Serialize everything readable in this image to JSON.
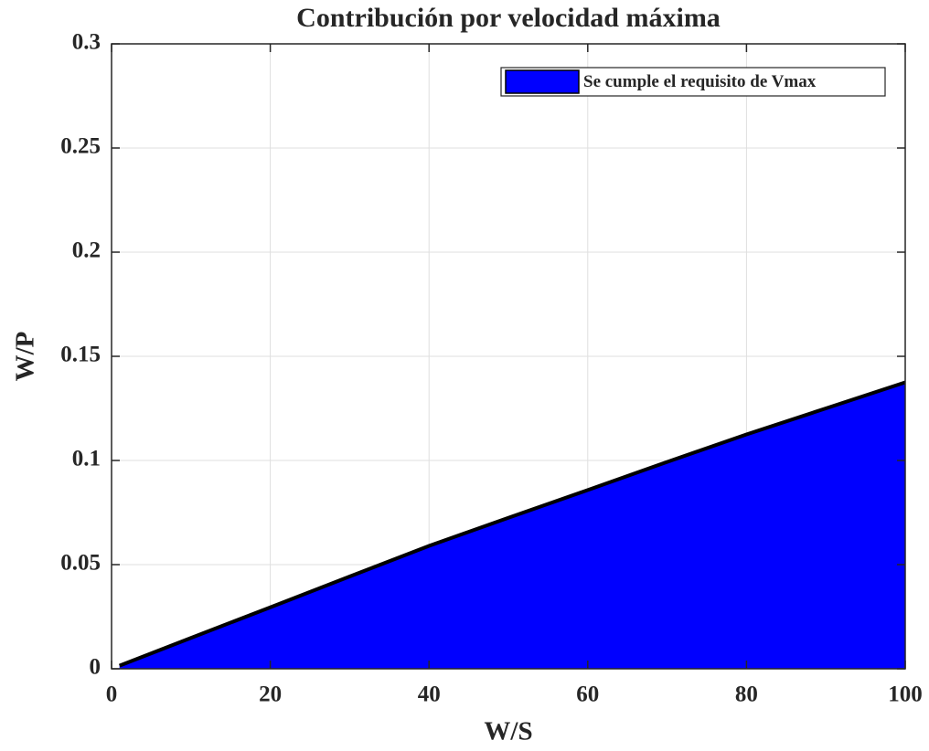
{
  "chart_data": {
    "type": "area",
    "title": "Contribución por velocidad máxima",
    "xlabel": "W/S",
    "ylabel": "W/P",
    "x": [
      1,
      10,
      20,
      30,
      40,
      50,
      60,
      70,
      80,
      90,
      100
    ],
    "series": [
      {
        "name": "Se cumple el requisito de Vmax",
        "color": "#0000ff",
        "edgecolor": "#000000",
        "values": [
          0.0015,
          0.0148,
          0.0295,
          0.0443,
          0.059,
          0.0725,
          0.0858,
          0.0993,
          0.1125,
          0.125,
          0.1375
        ]
      }
    ],
    "xlim": [
      0,
      100
    ],
    "xticks": [
      0,
      20,
      40,
      60,
      80,
      100
    ],
    "ylim": [
      0,
      0.3
    ],
    "yticks": [
      0,
      0.05,
      0.1,
      0.15,
      0.2,
      0.25,
      0.3
    ],
    "grid": true,
    "legend": "northeast"
  }
}
